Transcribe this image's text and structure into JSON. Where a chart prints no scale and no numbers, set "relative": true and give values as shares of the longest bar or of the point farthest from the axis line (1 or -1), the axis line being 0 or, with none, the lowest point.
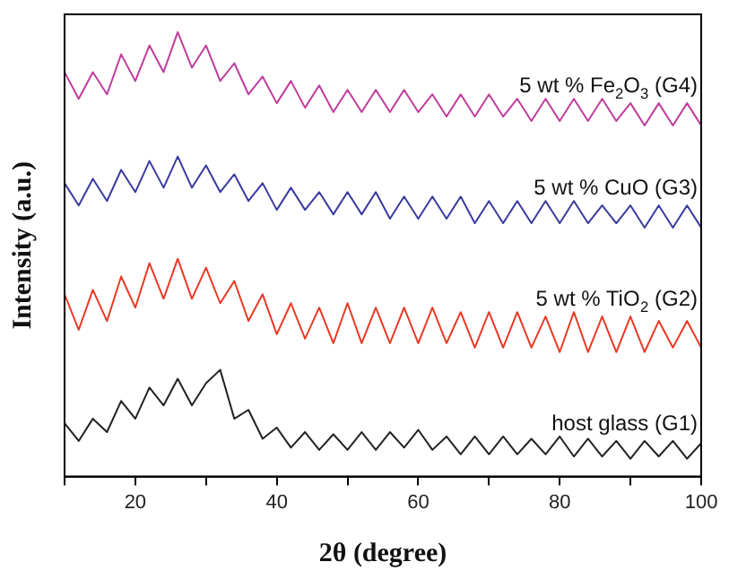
{
  "chart_data": {
    "type": "line",
    "relative": true,
    "xlabel": "2θ (degree)",
    "ylabel": "Intensity (a.u.)",
    "xlim": [
      10,
      100
    ],
    "xticks": [
      {
        "value": 10,
        "label": null
      },
      20,
      {
        "value": 30,
        "label": null
      },
      40,
      {
        "value": 50,
        "label": null
      },
      60,
      {
        "value": 70,
        "label": null
      },
      80,
      {
        "value": 90,
        "label": null
      },
      100
    ],
    "grid": false,
    "legend": false,
    "marker": "none",
    "line_style": "solid",
    "x": [
      10,
      12,
      14,
      16,
      18,
      20,
      22,
      24,
      26,
      28,
      30,
      32,
      34,
      36,
      38,
      40,
      42,
      44,
      46,
      48,
      50,
      52,
      54,
      56,
      58,
      60,
      62,
      64,
      66,
      68,
      70,
      72,
      74,
      76,
      78,
      80,
      82,
      84,
      86,
      88,
      90,
      92,
      94,
      96,
      98,
      100
    ],
    "series": [
      {
        "name": "host glass (G1)",
        "color": "#222222",
        "values": [
          0.12,
          0.08,
          0.13,
          0.1,
          0.17,
          0.13,
          0.2,
          0.16,
          0.22,
          0.16,
          0.21,
          0.24,
          0.13,
          0.15,
          0.085,
          0.11,
          0.065,
          0.1,
          0.06,
          0.095,
          0.06,
          0.1,
          0.06,
          0.1,
          0.065,
          0.105,
          0.06,
          0.09,
          0.05,
          0.09,
          0.05,
          0.09,
          0.05,
          0.085,
          0.05,
          0.09,
          0.045,
          0.085,
          0.045,
          0.08,
          0.04,
          0.08,
          0.045,
          0.08,
          0.04,
          0.075
        ]
      },
      {
        "name": "5 wt % TiO$_{2}$ (G2)",
        "color": "#e83a24",
        "values": [
          0.41,
          0.33,
          0.42,
          0.35,
          0.45,
          0.38,
          0.48,
          0.4,
          0.49,
          0.4,
          0.47,
          0.39,
          0.44,
          0.35,
          0.41,
          0.32,
          0.39,
          0.31,
          0.38,
          0.3,
          0.39,
          0.3,
          0.38,
          0.3,
          0.38,
          0.3,
          0.38,
          0.3,
          0.37,
          0.29,
          0.37,
          0.29,
          0.37,
          0.29,
          0.36,
          0.28,
          0.37,
          0.28,
          0.36,
          0.28,
          0.36,
          0.28,
          0.35,
          0.29,
          0.35,
          0.29
        ]
      },
      {
        "name": "5 wt % CuO (G3)",
        "color": "#3a3aa0",
        "values": [
          0.66,
          0.61,
          0.67,
          0.62,
          0.69,
          0.64,
          0.71,
          0.65,
          0.72,
          0.65,
          0.7,
          0.64,
          0.68,
          0.62,
          0.66,
          0.6,
          0.65,
          0.6,
          0.64,
          0.59,
          0.64,
          0.59,
          0.64,
          0.58,
          0.63,
          0.58,
          0.63,
          0.58,
          0.63,
          0.57,
          0.62,
          0.57,
          0.62,
          0.57,
          0.62,
          0.57,
          0.62,
          0.57,
          0.61,
          0.57,
          0.61,
          0.56,
          0.61,
          0.56,
          0.61,
          0.56
        ]
      },
      {
        "name": "5 wt % Fe$_{2}$O$_{3}$ (G4)",
        "color": "#c03c9c",
        "values": [
          0.91,
          0.85,
          0.91,
          0.86,
          0.95,
          0.89,
          0.97,
          0.91,
          1.0,
          0.92,
          0.97,
          0.89,
          0.93,
          0.86,
          0.9,
          0.84,
          0.89,
          0.83,
          0.88,
          0.82,
          0.87,
          0.82,
          0.87,
          0.82,
          0.87,
          0.82,
          0.86,
          0.81,
          0.86,
          0.81,
          0.86,
          0.81,
          0.85,
          0.8,
          0.85,
          0.8,
          0.85,
          0.8,
          0.85,
          0.8,
          0.84,
          0.79,
          0.84,
          0.79,
          0.84,
          0.79
        ]
      }
    ]
  }
}
